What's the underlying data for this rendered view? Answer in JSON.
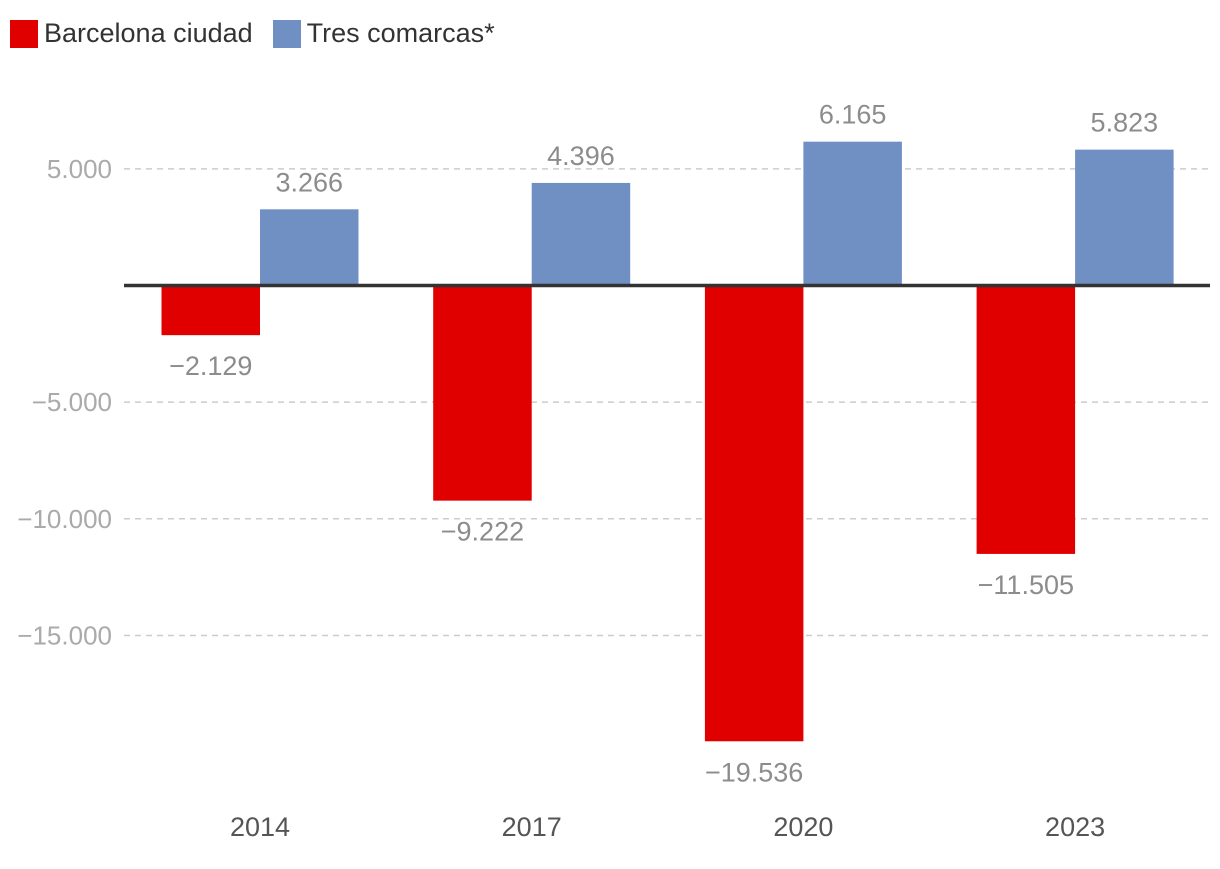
{
  "chart_data": {
    "type": "bar",
    "categories": [
      "2014",
      "2017",
      "2020",
      "2023"
    ],
    "series": [
      {
        "name": "Barcelona ciudad",
        "color": "#e00000",
        "values": [
          -2129,
          -9222,
          -19536,
          -11505
        ],
        "labels": [
          "−2.129",
          "−9.222",
          "−19.536",
          "−11.505"
        ]
      },
      {
        "name": "Tres comarcas*",
        "color": "#7090c4",
        "values": [
          3266,
          4396,
          6165,
          5823
        ],
        "labels": [
          "3.266",
          "4.396",
          "6.165",
          "5.823"
        ]
      }
    ],
    "y_ticks": [
      {
        "value": 5000,
        "label": "5.000"
      },
      {
        "value": -5000,
        "label": "−5.000"
      },
      {
        "value": -10000,
        "label": "−10.000"
      },
      {
        "value": -15000,
        "label": "−15.000"
      }
    ],
    "ylim": [
      -21500,
      8600
    ],
    "grid": "dashed horizontal",
    "legend_position": "top-left",
    "title": "",
    "xlabel": "",
    "ylabel": ""
  }
}
